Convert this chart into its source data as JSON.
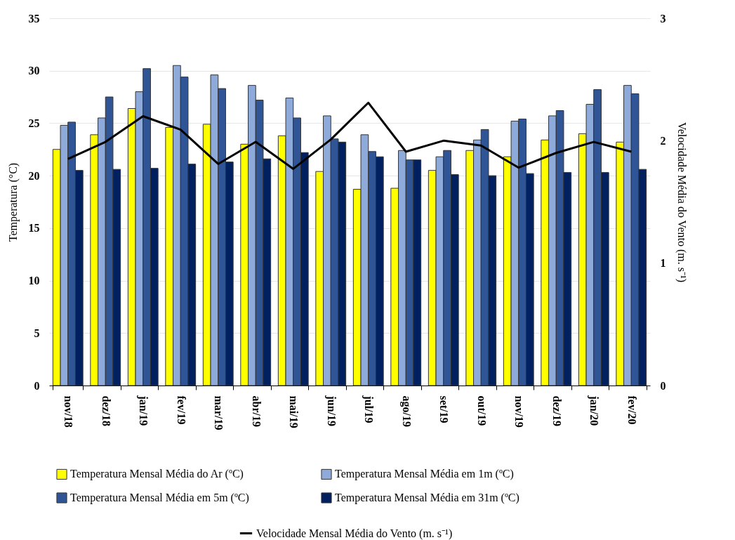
{
  "chart_data": {
    "type": "bar",
    "categories": [
      "nov/18",
      "dez/18",
      "jan/19",
      "fev/19",
      "mar/19",
      "abr/19",
      "mai/19",
      "jun/19",
      "jul/19",
      "ago/19",
      "set/19",
      "out/19",
      "nov/19",
      "dez/19",
      "jan/20",
      "fev/20"
    ],
    "ylabel": "Temperatura (°C)",
    "y2label": "Velocidade Média do Vento (m. s⁻¹)",
    "ylim": [
      0,
      35
    ],
    "yticks": [
      0,
      5,
      10,
      15,
      20,
      25,
      30,
      35
    ],
    "y2lim": [
      0,
      3
    ],
    "y2ticks": [
      0,
      1,
      2,
      3
    ],
    "grid": "y",
    "legend": "bottom",
    "series": [
      {
        "name": "Temperatura Mensal Média do Ar (ºC)",
        "color": "#ffff00",
        "values": [
          22.5,
          23.9,
          26.4,
          24.6,
          24.9,
          23.0,
          23.8,
          20.4,
          18.7,
          18.8,
          20.5,
          22.4,
          21.8,
          23.4,
          24.0,
          23.2
        ]
      },
      {
        "name": "Temperatura Mensal Média em 1m (ºC)",
        "color": "#8eaadb",
        "values": [
          24.8,
          25.5,
          28.0,
          30.5,
          29.6,
          28.6,
          27.4,
          25.7,
          23.9,
          22.4,
          21.8,
          23.4,
          25.2,
          25.7,
          26.8,
          28.6
        ]
      },
      {
        "name": "Temperatura Mensal Média em 5m (ºC)",
        "color": "#2f5597",
        "values": [
          25.1,
          27.5,
          30.2,
          29.4,
          28.3,
          27.2,
          25.5,
          23.5,
          22.3,
          21.5,
          22.4,
          24.4,
          25.4,
          26.2,
          28.2,
          27.8
        ]
      },
      {
        "name": "Temperatura Mensal Média em 31m (ºC)",
        "color": "#002060",
        "values": [
          20.5,
          20.6,
          20.7,
          21.1,
          21.3,
          21.6,
          22.2,
          23.2,
          21.8,
          21.5,
          20.1,
          20.0,
          20.2,
          20.3,
          20.3,
          20.6
        ]
      },
      {
        "name": "Velocidade Mensal Média do Vento (m. s⁻¹)",
        "color": "#000000",
        "type": "line",
        "axis": "y2",
        "values": [
          1.85,
          1.99,
          2.2,
          2.09,
          1.81,
          1.99,
          1.77,
          2.01,
          2.31,
          1.91,
          2.0,
          1.96,
          1.78,
          1.9,
          1.99,
          1.91
        ]
      }
    ]
  }
}
